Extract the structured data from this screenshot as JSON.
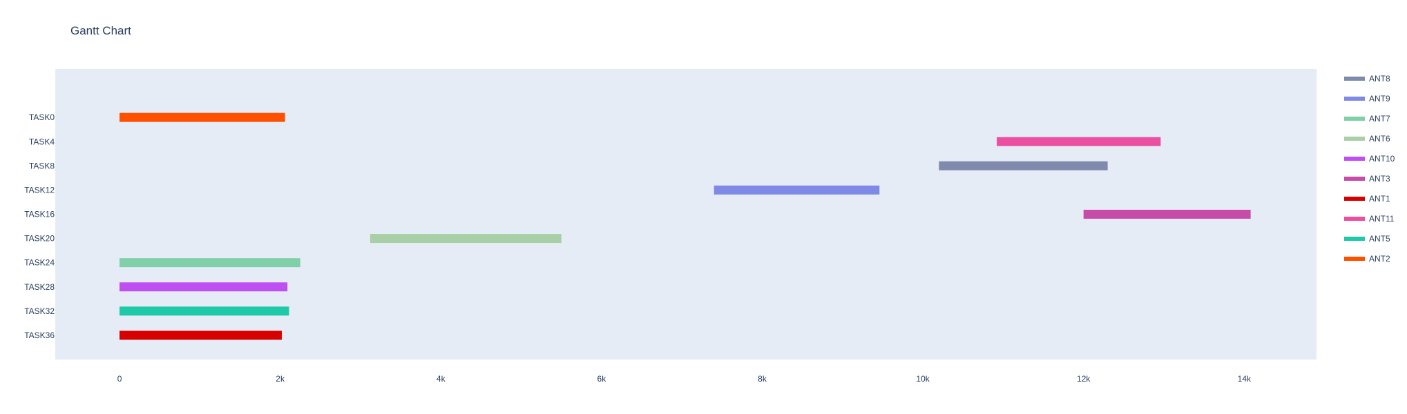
{
  "chart_data": {
    "type": "gantt",
    "title": "Gantt Chart",
    "xlabel": "",
    "ylabel": "",
    "xlim": [
      -800,
      14900
    ],
    "x_ticks": [
      {
        "value": 0,
        "label": "0"
      },
      {
        "value": 2000,
        "label": "2k"
      },
      {
        "value": 4000,
        "label": "4k"
      },
      {
        "value": 6000,
        "label": "6k"
      },
      {
        "value": 8000,
        "label": "8k"
      },
      {
        "value": 10000,
        "label": "10k"
      },
      {
        "value": 12000,
        "label": "12k"
      },
      {
        "value": 14000,
        "label": "14k"
      }
    ],
    "categories": [
      "TASK0",
      "TASK4",
      "TASK8",
      "TASK12",
      "TASK16",
      "TASK20",
      "TASK24",
      "TASK28",
      "TASK32",
      "TASK36"
    ],
    "tasks": [
      {
        "task": "TASK0",
        "start": 0,
        "end": 2060,
        "resource": "ANT2"
      },
      {
        "task": "TASK4",
        "start": 10920,
        "end": 12960,
        "resource": "ANT11"
      },
      {
        "task": "TASK8",
        "start": 10200,
        "end": 12300,
        "resource": "ANT8"
      },
      {
        "task": "TASK12",
        "start": 7400,
        "end": 9460,
        "resource": "ANT9"
      },
      {
        "task": "TASK16",
        "start": 12000,
        "end": 14080,
        "resource": "ANT3"
      },
      {
        "task": "TASK20",
        "start": 3120,
        "end": 5500,
        "resource": "ANT6"
      },
      {
        "task": "TASK24",
        "start": 0,
        "end": 2250,
        "resource": "ANT7"
      },
      {
        "task": "TASK28",
        "start": 0,
        "end": 2090,
        "resource": "ANT10"
      },
      {
        "task": "TASK32",
        "start": 0,
        "end": 2110,
        "resource": "ANT5"
      },
      {
        "task": "TASK36",
        "start": 0,
        "end": 2020,
        "resource": "ANT1"
      }
    ],
    "legend": [
      {
        "name": "ANT8",
        "color": "#7f8aad"
      },
      {
        "name": "ANT9",
        "color": "#7f8ae6"
      },
      {
        "name": "ANT7",
        "color": "#7fcfa8"
      },
      {
        "name": "ANT6",
        "color": "#a8cfa5"
      },
      {
        "name": "ANT10",
        "color": "#bf4ff0"
      },
      {
        "name": "ANT3",
        "color": "#c74ca8"
      },
      {
        "name": "ANT1",
        "color": "#d60000"
      },
      {
        "name": "ANT11",
        "color": "#eb4fa0"
      },
      {
        "name": "ANT5",
        "color": "#1ec9a8"
      },
      {
        "name": "ANT2",
        "color": "#ff5000"
      }
    ],
    "legend_position": "right",
    "grid": false,
    "plot_background": "#e5ecf6"
  }
}
